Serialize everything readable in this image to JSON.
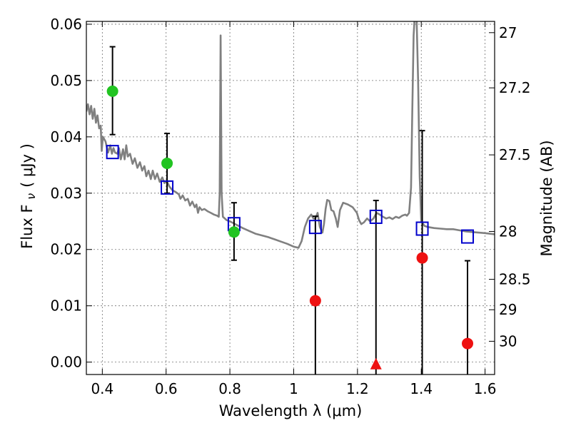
{
  "chart_data": {
    "type": "scatter",
    "xlabel": "Wavelength  λ (μm)",
    "ylabel": "Flux  F",
    "ylabel_sub": "ν",
    "ylabel_unit": "( μJy )",
    "y2label": "Magnitude (AB)",
    "xlim": [
      0.35,
      1.63
    ],
    "ylim": [
      -0.0022,
      0.0605
    ],
    "xticks": [
      0.4,
      0.6,
      0.8,
      1.0,
      1.2,
      1.4,
      1.6
    ],
    "xtick_labels": [
      "0.4",
      "0.6",
      "0.8",
      "1",
      "1.2",
      "1.4",
      "1.6"
    ],
    "yticks": [
      0.0,
      0.01,
      0.02,
      0.03,
      0.04,
      0.05,
      0.06
    ],
    "ytick_labels": [
      "0.00",
      "0.01",
      "0.02",
      "0.03",
      "0.04",
      "0.05",
      "0.06"
    ],
    "y2ticks": [
      {
        "flux": 0.0585,
        "label": "27"
      },
      {
        "flux": 0.0487,
        "label": "27.2"
      },
      {
        "flux": 0.0368,
        "label": "27.5"
      },
      {
        "flux": 0.0232,
        "label": "28"
      },
      {
        "flux": 0.0147,
        "label": "28.5"
      },
      {
        "flux": 0.0093,
        "label": "29"
      },
      {
        "flux": 0.0037,
        "label": "30"
      }
    ],
    "grid": true,
    "colors": {
      "template": "#808080",
      "model": "#0000cc",
      "detection": "#22c422",
      "low_sn": "#ee1111",
      "errorbar": "#000000"
    },
    "series": [
      {
        "kind": "line",
        "points": [
          [
            0.35,
            0.0445
          ],
          [
            0.355,
            0.0458
          ],
          [
            0.36,
            0.044
          ],
          [
            0.365,
            0.0455
          ],
          [
            0.37,
            0.0432
          ],
          [
            0.375,
            0.045
          ],
          [
            0.38,
            0.0425
          ],
          [
            0.385,
            0.0438
          ],
          [
            0.39,
            0.0415
          ],
          [
            0.395,
            0.042
          ],
          [
            0.398,
            0.0375
          ],
          [
            0.402,
            0.04
          ],
          [
            0.41,
            0.0392
          ],
          [
            0.418,
            0.0372
          ],
          [
            0.425,
            0.0385
          ],
          [
            0.43,
            0.037
          ],
          [
            0.435,
            0.038
          ],
          [
            0.44,
            0.0372
          ],
          [
            0.447,
            0.037
          ],
          [
            0.452,
            0.038
          ],
          [
            0.458,
            0.036
          ],
          [
            0.465,
            0.0378
          ],
          [
            0.47,
            0.036
          ],
          [
            0.475,
            0.0385
          ],
          [
            0.48,
            0.0365
          ],
          [
            0.487,
            0.037
          ],
          [
            0.495,
            0.0352
          ],
          [
            0.502,
            0.0362
          ],
          [
            0.51,
            0.0345
          ],
          [
            0.518,
            0.0355
          ],
          [
            0.525,
            0.034
          ],
          [
            0.532,
            0.0348
          ],
          [
            0.538,
            0.033
          ],
          [
            0.545,
            0.034
          ],
          [
            0.552,
            0.0325
          ],
          [
            0.558,
            0.034
          ],
          [
            0.565,
            0.0325
          ],
          [
            0.572,
            0.0335
          ],
          [
            0.58,
            0.032
          ],
          [
            0.588,
            0.0328
          ],
          [
            0.595,
            0.0318
          ],
          [
            0.602,
            0.0322
          ],
          [
            0.61,
            0.0312
          ],
          [
            0.62,
            0.0305
          ],
          [
            0.63,
            0.0302
          ],
          [
            0.64,
            0.0298
          ],
          [
            0.645,
            0.029
          ],
          [
            0.652,
            0.0296
          ],
          [
            0.66,
            0.0287
          ],
          [
            0.668,
            0.029
          ],
          [
            0.675,
            0.0278
          ],
          [
            0.682,
            0.0285
          ],
          [
            0.69,
            0.0275
          ],
          [
            0.695,
            0.028
          ],
          [
            0.7,
            0.0265
          ],
          [
            0.705,
            0.0275
          ],
          [
            0.712,
            0.027
          ],
          [
            0.72,
            0.0272
          ],
          [
            0.73,
            0.0268
          ],
          [
            0.74,
            0.0265
          ],
          [
            0.75,
            0.0262
          ],
          [
            0.76,
            0.026
          ],
          [
            0.765,
            0.0258
          ],
          [
            0.768,
            0.03
          ],
          [
            0.771,
            0.058
          ],
          [
            0.774,
            0.03
          ],
          [
            0.778,
            0.0258
          ],
          [
            0.79,
            0.0252
          ],
          [
            0.8,
            0.025
          ],
          [
            0.81,
            0.0247
          ],
          [
            0.82,
            0.0244
          ],
          [
            0.84,
            0.0238
          ],
          [
            0.86,
            0.0233
          ],
          [
            0.88,
            0.0228
          ],
          [
            0.9,
            0.0225
          ],
          [
            0.92,
            0.0222
          ],
          [
            0.94,
            0.0218
          ],
          [
            0.96,
            0.0214
          ],
          [
            0.98,
            0.021
          ],
          [
            1.0,
            0.0205
          ],
          [
            1.015,
            0.0203
          ],
          [
            1.025,
            0.0215
          ],
          [
            1.035,
            0.024
          ],
          [
            1.045,
            0.0255
          ],
          [
            1.055,
            0.0262
          ],
          [
            1.062,
            0.0255
          ],
          [
            1.068,
            0.0255
          ],
          [
            1.075,
            0.0265
          ],
          [
            1.082,
            0.024
          ],
          [
            1.09,
            0.023
          ],
          [
            1.095,
            0.0245
          ],
          [
            1.1,
            0.0272
          ],
          [
            1.105,
            0.0288
          ],
          [
            1.112,
            0.0286
          ],
          [
            1.118,
            0.027
          ],
          [
            1.125,
            0.0268
          ],
          [
            1.132,
            0.0255
          ],
          [
            1.138,
            0.024
          ],
          [
            1.145,
            0.027
          ],
          [
            1.155,
            0.0283
          ],
          [
            1.17,
            0.028
          ],
          [
            1.185,
            0.0275
          ],
          [
            1.198,
            0.0265
          ],
          [
            1.205,
            0.0252
          ],
          [
            1.212,
            0.0245
          ],
          [
            1.22,
            0.0248
          ],
          [
            1.23,
            0.0255
          ],
          [
            1.24,
            0.025
          ],
          [
            1.25,
            0.0255
          ],
          [
            1.26,
            0.0265
          ],
          [
            1.27,
            0.0262
          ],
          [
            1.28,
            0.0258
          ],
          [
            1.29,
            0.0255
          ],
          [
            1.3,
            0.0257
          ],
          [
            1.31,
            0.0254
          ],
          [
            1.32,
            0.0258
          ],
          [
            1.33,
            0.0256
          ],
          [
            1.34,
            0.026
          ],
          [
            1.35,
            0.0262
          ],
          [
            1.355,
            0.026
          ],
          [
            1.362,
            0.0265
          ],
          [
            1.368,
            0.031
          ],
          [
            1.372,
            0.045
          ],
          [
            1.376,
            0.058
          ],
          [
            1.38,
            0.062
          ],
          [
            1.385,
            0.062
          ],
          [
            1.39,
            0.05
          ],
          [
            1.395,
            0.033
          ],
          [
            1.4,
            0.025
          ],
          [
            1.41,
            0.0242
          ],
          [
            1.42,
            0.024
          ],
          [
            1.44,
            0.0238
          ],
          [
            1.46,
            0.0237
          ],
          [
            1.48,
            0.0236
          ],
          [
            1.5,
            0.0236
          ],
          [
            1.52,
            0.0234
          ],
          [
            1.54,
            0.0232
          ],
          [
            1.56,
            0.0231
          ],
          [
            1.58,
            0.023
          ],
          [
            1.6,
            0.0229
          ],
          [
            1.63,
            0.0227
          ]
        ]
      },
      {
        "kind": "model-squares",
        "points": [
          {
            "x": 0.432,
            "y": 0.0373
          },
          {
            "x": 0.603,
            "y": 0.031
          },
          {
            "x": 0.813,
            "y": 0.0245
          },
          {
            "x": 1.068,
            "y": 0.024
          },
          {
            "x": 1.258,
            "y": 0.0258
          },
          {
            "x": 1.403,
            "y": 0.0237
          },
          {
            "x": 1.545,
            "y": 0.0223
          }
        ]
      },
      {
        "kind": "observed-detections",
        "points": [
          {
            "x": 0.432,
            "y": 0.0481,
            "ylo": 0.0404,
            "yhi": 0.056
          },
          {
            "x": 0.603,
            "y": 0.0353,
            "ylo": 0.03,
            "yhi": 0.0406
          },
          {
            "x": 0.813,
            "y": 0.0231,
            "ylo": 0.0181,
            "yhi": 0.0283
          }
        ]
      },
      {
        "kind": "observed-low-sn",
        "points": [
          {
            "x": 1.068,
            "y": 0.0109,
            "ylo": -0.003,
            "yhi": 0.0259,
            "marker": "circle"
          },
          {
            "x": 1.258,
            "y": -0.0004,
            "ylo": -0.003,
            "yhi": 0.0287,
            "marker": "triangle"
          },
          {
            "x": 1.403,
            "y": 0.0185,
            "ylo": -0.003,
            "yhi": 0.0411,
            "marker": "circle"
          },
          {
            "x": 1.545,
            "y": 0.0033,
            "ylo": -0.003,
            "yhi": 0.018,
            "marker": "circle"
          }
        ]
      }
    ]
  }
}
